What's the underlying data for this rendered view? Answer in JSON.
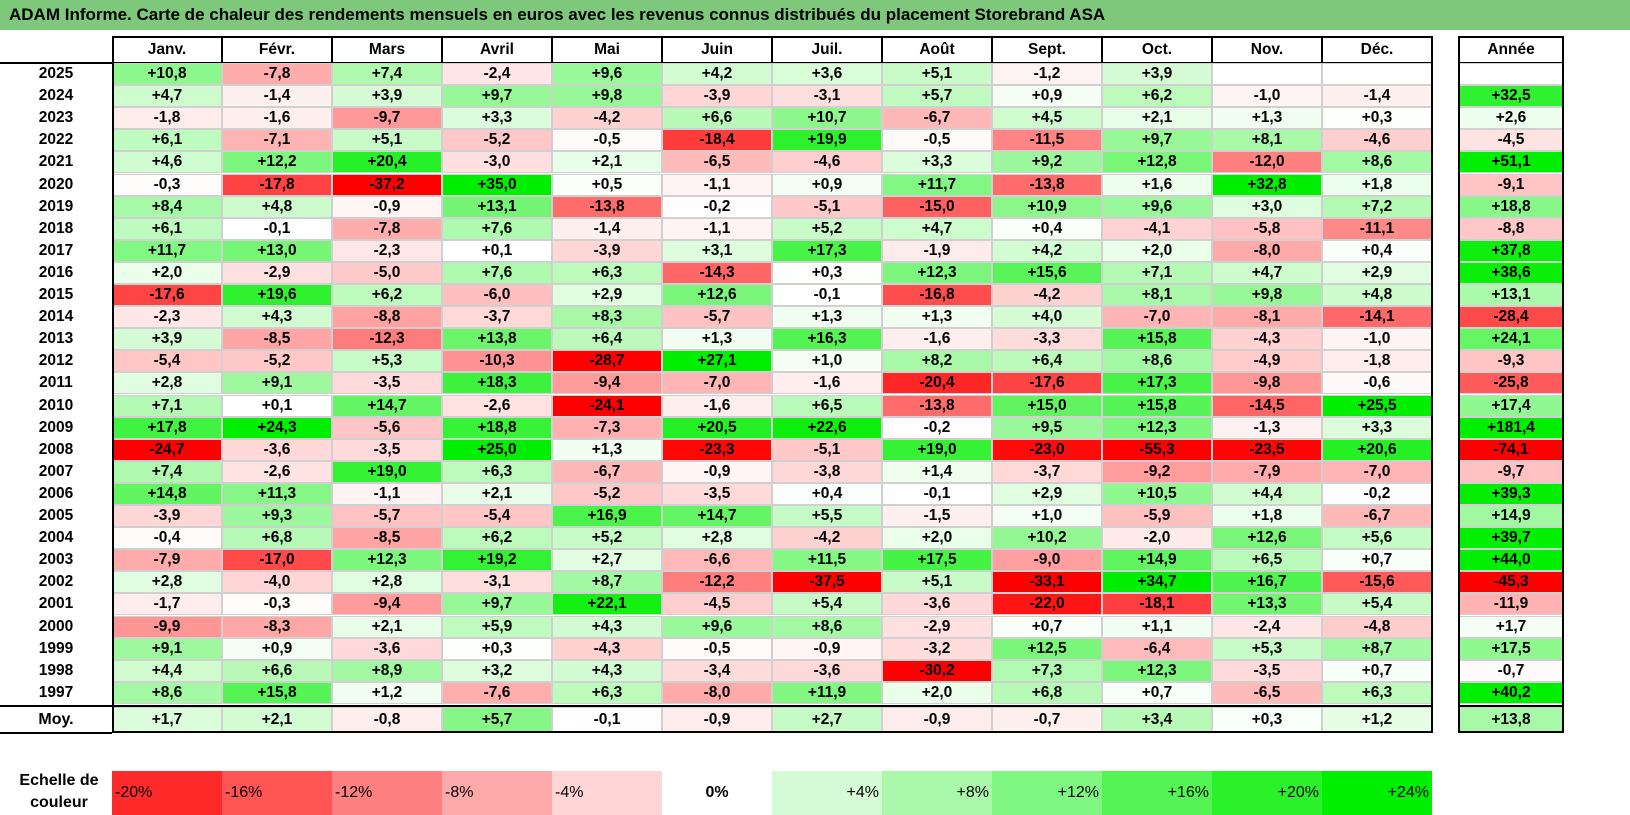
{
  "title": "ADAM Informe. Carte de chaleur des rendements mensuels en euros avec les revenus connus distribués du placement Storebrand ASA",
  "chart_data": {
    "type": "heatmap",
    "months": [
      "Janv.",
      "Févr.",
      "Mars",
      "Avril",
      "Mai",
      "Juin",
      "Juil.",
      "Août",
      "Sept.",
      "Oct.",
      "Nov.",
      "Déc."
    ],
    "year_header": "Année",
    "avg_label": "Moy.",
    "rows": [
      {
        "year": "2025",
        "values": [
          "+10,8",
          "-7,8",
          "+7,4",
          "-2,4",
          "+9,6",
          "+4,2",
          "+3,6",
          "+5,1",
          "-1,2",
          "+3,9",
          "",
          ""
        ],
        "annual": ""
      },
      {
        "year": "2024",
        "values": [
          "+4,7",
          "-1,4",
          "+3,9",
          "+9,7",
          "+9,8",
          "-3,9",
          "-3,1",
          "+5,7",
          "+0,9",
          "+6,2",
          "-1,0",
          "-1,4"
        ],
        "annual": "+32,5"
      },
      {
        "year": "2023",
        "values": [
          "-1,8",
          "-1,6",
          "-9,7",
          "+3,3",
          "-4,2",
          "+6,6",
          "+10,7",
          "-6,7",
          "+4,5",
          "+2,1",
          "+1,3",
          "+0,3"
        ],
        "annual": "+2,6"
      },
      {
        "year": "2022",
        "values": [
          "+6,1",
          "-7,1",
          "+5,1",
          "-5,2",
          "-0,5",
          "-18,4",
          "+19,9",
          "-0,5",
          "-11,5",
          "+9,7",
          "+8,1",
          "-4,6"
        ],
        "annual": "-4,5"
      },
      {
        "year": "2021",
        "values": [
          "+4,6",
          "+12,2",
          "+20,4",
          "-3,0",
          "+2,1",
          "-6,5",
          "-4,6",
          "+3,3",
          "+9,2",
          "+12,8",
          "-12,0",
          "+8,6"
        ],
        "annual": "+51,1"
      },
      {
        "year": "2020",
        "values": [
          "-0,3",
          "-17,8",
          "-37,2",
          "+35,0",
          "+0,5",
          "-1,1",
          "+0,9",
          "+11,7",
          "-13,8",
          "+1,6",
          "+32,8",
          "+1,8"
        ],
        "annual": "-9,1"
      },
      {
        "year": "2019",
        "values": [
          "+8,4",
          "+4,8",
          "-0,9",
          "+13,1",
          "-13,8",
          "-0,2",
          "-5,1",
          "-15,0",
          "+10,9",
          "+9,6",
          "+3,0",
          "+7,2"
        ],
        "annual": "+18,8"
      },
      {
        "year": "2018",
        "values": [
          "+6,1",
          "-0,1",
          "-7,8",
          "+7,6",
          "-1,4",
          "-1,1",
          "+5,2",
          "+4,7",
          "+0,4",
          "-4,1",
          "-5,8",
          "-11,1"
        ],
        "annual": "-8,8"
      },
      {
        "year": "2017",
        "values": [
          "+11,7",
          "+13,0",
          "-2,3",
          "+0,1",
          "-3,9",
          "+3,1",
          "+17,3",
          "-1,9",
          "+4,2",
          "+2,0",
          "-8,0",
          "+0,4"
        ],
        "annual": "+37,8"
      },
      {
        "year": "2016",
        "values": [
          "+2,0",
          "-2,9",
          "-5,0",
          "+7,6",
          "+6,3",
          "-14,3",
          "+0,3",
          "+12,3",
          "+15,6",
          "+7,1",
          "+4,7",
          "+2,9"
        ],
        "annual": "+38,6"
      },
      {
        "year": "2015",
        "values": [
          "-17,6",
          "+19,6",
          "+6,2",
          "-6,0",
          "+2,9",
          "+12,6",
          "-0,1",
          "-16,8",
          "-4,2",
          "+8,1",
          "+9,8",
          "+4,8"
        ],
        "annual": "+13,1"
      },
      {
        "year": "2014",
        "values": [
          "-2,3",
          "+4,3",
          "-8,8",
          "-3,7",
          "+8,3",
          "-5,7",
          "+1,3",
          "+1,3",
          "+4,0",
          "-7,0",
          "-8,1",
          "-14,1"
        ],
        "annual": "-28,4"
      },
      {
        "year": "2013",
        "values": [
          "+3,9",
          "-8,5",
          "-12,3",
          "+13,8",
          "+6,4",
          "+1,3",
          "+16,3",
          "-1,6",
          "-3,3",
          "+15,8",
          "-4,3",
          "-1,0"
        ],
        "annual": "+24,1"
      },
      {
        "year": "2012",
        "values": [
          "-5,4",
          "-5,2",
          "+5,3",
          "-10,3",
          "-28,7",
          "+27,1",
          "+1,0",
          "+8,2",
          "+6,4",
          "+8,6",
          "-4,9",
          "-1,8"
        ],
        "annual": "-9,3"
      },
      {
        "year": "2011",
        "values": [
          "+2,8",
          "+9,1",
          "-3,5",
          "+18,3",
          "-9,4",
          "-7,0",
          "-1,6",
          "-20,4",
          "-17,6",
          "+17,3",
          "-9,8",
          "-0,6"
        ],
        "annual": "-25,8"
      },
      {
        "year": "2010",
        "values": [
          "+7,1",
          "+0,1",
          "+14,7",
          "-2,6",
          "-24,1",
          "-1,6",
          "+6,5",
          "-13,8",
          "+15,0",
          "+15,8",
          "-14,5",
          "+25,5"
        ],
        "annual": "+17,4"
      },
      {
        "year": "2009",
        "values": [
          "+17,8",
          "+24,3",
          "-5,6",
          "+18,8",
          "-7,3",
          "+20,5",
          "+22,6",
          "-0,2",
          "+9,5",
          "+12,3",
          "-1,3",
          "+3,3"
        ],
        "annual": "+181,4"
      },
      {
        "year": "2008",
        "values": [
          "-24,7",
          "-3,6",
          "-3,5",
          "+25,0",
          "+1,3",
          "-23,3",
          "-5,1",
          "+19,0",
          "-23,0",
          "-55,3",
          "-23,5",
          "+20,6"
        ],
        "annual": "-74,1"
      },
      {
        "year": "2007",
        "values": [
          "+7,4",
          "-2,6",
          "+19,0",
          "+6,3",
          "-6,7",
          "-0,9",
          "-3,8",
          "+1,4",
          "-3,7",
          "-9,2",
          "-7,9",
          "-7,0"
        ],
        "annual": "-9,7"
      },
      {
        "year": "2006",
        "values": [
          "+14,8",
          "+11,3",
          "-1,1",
          "+2,1",
          "-5,2",
          "-3,5",
          "+0,4",
          "-0,1",
          "+2,9",
          "+10,5",
          "+4,4",
          "-0,2"
        ],
        "annual": "+39,3"
      },
      {
        "year": "2005",
        "values": [
          "-3,9",
          "+9,3",
          "-5,7",
          "-5,4",
          "+16,9",
          "+14,7",
          "+5,5",
          "-1,5",
          "+1,0",
          "-5,9",
          "+1,8",
          "-6,7"
        ],
        "annual": "+14,9"
      },
      {
        "year": "2004",
        "values": [
          "-0,4",
          "+6,8",
          "-8,5",
          "+6,2",
          "+5,2",
          "+2,8",
          "-4,2",
          "+2,0",
          "+10,2",
          "-2,0",
          "+12,6",
          "+5,6"
        ],
        "annual": "+39,7"
      },
      {
        "year": "2003",
        "values": [
          "-7,9",
          "-17,0",
          "+12,3",
          "+19,2",
          "+2,7",
          "-6,6",
          "+11,5",
          "+17,5",
          "-9,0",
          "+14,9",
          "+6,5",
          "+0,7"
        ],
        "annual": "+44,0"
      },
      {
        "year": "2002",
        "values": [
          "+2,8",
          "-4,0",
          "+2,8",
          "-3,1",
          "+8,7",
          "-12,2",
          "-37,5",
          "+5,1",
          "-33,1",
          "+34,7",
          "+16,7",
          "-15,6"
        ],
        "annual": "-45,3"
      },
      {
        "year": "2001",
        "values": [
          "-1,7",
          "-0,3",
          "-9,4",
          "+9,7",
          "+22,1",
          "-4,5",
          "+5,4",
          "-3,6",
          "-22,0",
          "-18,1",
          "+13,3",
          "+5,4"
        ],
        "annual": "-11,9"
      },
      {
        "year": "2000",
        "values": [
          "-9,9",
          "-8,3",
          "+2,1",
          "+5,9",
          "+4,3",
          "+9,6",
          "+8,6",
          "-2,9",
          "+0,7",
          "+1,1",
          "-2,4",
          "-4,8"
        ],
        "annual": "+1,7"
      },
      {
        "year": "1999",
        "values": [
          "+9,1",
          "+0,9",
          "-3,6",
          "+0,3",
          "-4,3",
          "-0,5",
          "-0,9",
          "-3,2",
          "+12,5",
          "-6,4",
          "+5,3",
          "+8,7"
        ],
        "annual": "+17,5"
      },
      {
        "year": "1998",
        "values": [
          "+4,4",
          "+6,6",
          "+8,9",
          "+3,2",
          "+4,3",
          "-3,4",
          "-3,6",
          "-30,2",
          "+7,3",
          "+12,3",
          "-3,5",
          "+0,7"
        ],
        "annual": "-0,7"
      },
      {
        "year": "1997",
        "values": [
          "+8,6",
          "+15,8",
          "+1,2",
          "-7,6",
          "+6,3",
          "-8,0",
          "+11,9",
          "+2,0",
          "+6,8",
          "+0,7",
          "-6,5",
          "+6,3"
        ],
        "annual": "+40,2"
      }
    ],
    "averages": [
      "+1,7",
      "+2,1",
      "-0,8",
      "+5,7",
      "-0,1",
      "-0,9",
      "+2,7",
      "-0,9",
      "-0,7",
      "+3,4",
      "+0,3",
      "+1,2"
    ],
    "average_annual": "+13,8",
    "scale_label": "Echelle de couleur",
    "scale": [
      "-20%",
      "-16%",
      "-12%",
      "-8%",
      "-4%",
      "0%",
      "+4%",
      "+8%",
      "+12%",
      "+16%",
      "+20%",
      "+24%"
    ],
    "colors": {
      "title_bg": "#7dc87a",
      "neg_max": "#ff0000",
      "neutral": "#ffffff",
      "pos_max": "#00ee00"
    }
  }
}
